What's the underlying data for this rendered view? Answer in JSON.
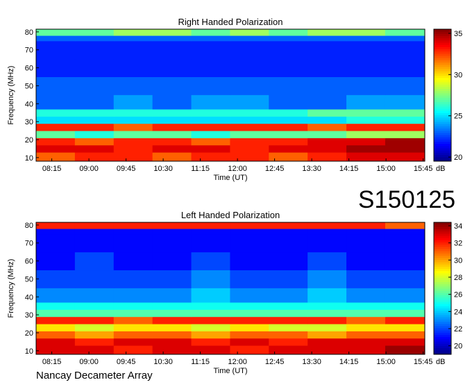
{
  "chart_data": [
    {
      "type": "heatmap",
      "title": "Right Handed Polarization",
      "xlabel": "Time (UT)",
      "ylabel": "Frequency (MHz)",
      "colorbar_label": "dB",
      "colormap": "jet",
      "xlim": [
        476,
        947
      ],
      "xticks": [
        {
          "value": 495,
          "label": "08:15"
        },
        {
          "value": 540,
          "label": "09:00"
        },
        {
          "value": 585,
          "label": "09:45"
        },
        {
          "value": 630,
          "label": "10:30"
        },
        {
          "value": 675,
          "label": "11:15"
        },
        {
          "value": 720,
          "label": "12:00"
        },
        {
          "value": 765,
          "label": "12:45"
        },
        {
          "value": 810,
          "label": "13:30"
        },
        {
          "value": 855,
          "label": "14:15"
        },
        {
          "value": 900,
          "label": "15:00"
        },
        {
          "value": 945,
          "label": "15:45"
        }
      ],
      "ylim": [
        8,
        81.5
      ],
      "yticks": [
        10,
        20,
        30,
        40,
        50,
        60,
        70,
        80
      ],
      "x_edges": [
        476,
        523,
        570,
        617,
        664,
        711,
        758,
        805,
        852,
        899,
        947
      ],
      "y_edges": [
        8,
        13,
        17,
        21,
        25,
        29,
        33,
        37,
        45,
        55,
        65,
        75,
        78,
        81.5
      ],
      "values": [
        [
          32,
          33,
          33,
          32,
          33,
          33,
          32,
          33,
          34,
          34
        ],
        [
          34,
          34,
          33,
          34,
          34,
          33,
          34,
          34,
          35,
          35
        ],
        [
          33,
          32,
          33,
          33,
          32,
          33,
          33,
          34,
          34,
          35
        ],
        [
          27,
          26,
          27,
          27,
          26,
          27,
          27,
          27,
          28,
          28
        ],
        [
          33,
          33,
          32,
          33,
          33,
          33,
          33,
          32,
          33,
          33
        ],
        [
          25,
          25,
          25,
          25,
          25,
          25,
          25,
          25,
          26,
          26
        ],
        [
          26,
          26,
          26,
          26,
          26,
          26,
          26,
          27,
          27,
          27
        ],
        [
          23,
          23,
          24,
          23,
          24,
          24,
          23,
          23,
          24,
          24
        ],
        [
          23,
          23,
          23,
          23,
          23,
          23,
          23,
          23,
          23,
          23
        ],
        [
          22,
          22,
          22,
          22,
          22,
          22,
          22,
          22,
          22,
          22
        ],
        [
          22,
          22,
          22,
          22,
          22,
          22,
          22,
          22,
          22,
          22
        ],
        [
          23,
          23,
          23,
          23,
          23,
          23,
          23,
          23,
          23,
          23
        ],
        [
          27,
          27,
          28,
          28,
          27,
          28,
          27,
          28,
          28,
          27
        ]
      ],
      "clim": [
        19.5,
        35.5
      ],
      "cticks": [
        20,
        25,
        30,
        35
      ]
    },
    {
      "type": "heatmap",
      "title": "Left Handed Polarization",
      "xlabel": "Time (UT)",
      "ylabel": "Frequency (MHz)",
      "colorbar_label": "dB",
      "colormap": "jet",
      "xlim": [
        476,
        947
      ],
      "xticks": [
        {
          "value": 495,
          "label": "08:15"
        },
        {
          "value": 540,
          "label": "09:00"
        },
        {
          "value": 585,
          "label": "09:45"
        },
        {
          "value": 630,
          "label": "10:30"
        },
        {
          "value": 675,
          "label": "11:15"
        },
        {
          "value": 720,
          "label": "12:00"
        },
        {
          "value": 765,
          "label": "12:45"
        },
        {
          "value": 810,
          "label": "13:30"
        },
        {
          "value": 855,
          "label": "14:15"
        },
        {
          "value": 900,
          "label": "15:00"
        },
        {
          "value": 945,
          "label": "15:45"
        }
      ],
      "ylim": [
        8,
        81.5
      ],
      "yticks": [
        10,
        20,
        30,
        40,
        50,
        60,
        70,
        80
      ],
      "x_edges": [
        476,
        523,
        570,
        617,
        664,
        711,
        758,
        805,
        852,
        899,
        947
      ],
      "y_edges": [
        8,
        13,
        17,
        21,
        25,
        29,
        33,
        37,
        45,
        55,
        65,
        75,
        78,
        81.5
      ],
      "values": [
        [
          33,
          33,
          32,
          33,
          33,
          32,
          33,
          33,
          33,
          34
        ],
        [
          33,
          32,
          33,
          33,
          32,
          33,
          32,
          33,
          33,
          33
        ],
        [
          31,
          30,
          31,
          31,
          30,
          31,
          31,
          30,
          31,
          31
        ],
        [
          29,
          28,
          29,
          29,
          28,
          29,
          28,
          28,
          29,
          29
        ],
        [
          32,
          32,
          31,
          32,
          32,
          32,
          32,
          32,
          31,
          32
        ],
        [
          26,
          26,
          26,
          26,
          26,
          26,
          26,
          26,
          26,
          26
        ],
        [
          25,
          25,
          25,
          25,
          25,
          25,
          25,
          25,
          25,
          25
        ],
        [
          23,
          23,
          23,
          23,
          24,
          23,
          23,
          24,
          23,
          23
        ],
        [
          22,
          22,
          22,
          22,
          23,
          22,
          22,
          23,
          22,
          22
        ],
        [
          21,
          22,
          21,
          21,
          22,
          21,
          21,
          22,
          21,
          21
        ],
        [
          21,
          21,
          21,
          21,
          21,
          21,
          21,
          21,
          21,
          21
        ],
        [
          21,
          21,
          21,
          21,
          21,
          21,
          21,
          21,
          21,
          21
        ],
        [
          32,
          32,
          32,
          32,
          32,
          32,
          32,
          32,
          32,
          31
        ]
      ],
      "clim": [
        19,
        34.4
      ],
      "cticks": [
        20,
        22,
        24,
        26,
        28,
        30,
        32,
        34
      ]
    }
  ],
  "annotations": [
    "S150125",
    "Nancay Decameter Array"
  ]
}
